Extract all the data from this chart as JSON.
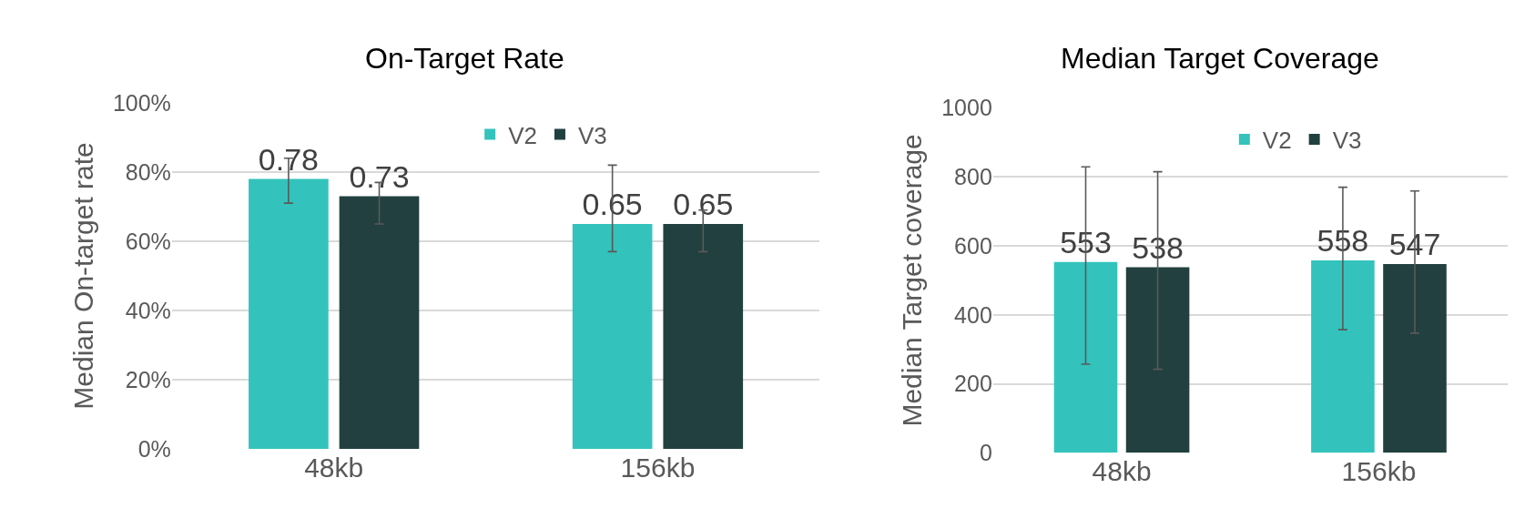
{
  "chart_data": [
    {
      "type": "bar",
      "title": "On-Target Rate",
      "ylabel": "Median On-target rate",
      "categories": [
        "48kb",
        "156kb"
      ],
      "series": [
        {
          "name": "V2",
          "color": "#33c3bc",
          "values": [
            0.78,
            0.65
          ],
          "errors": [
            [
              0.71,
              0.84
            ],
            [
              0.57,
              0.82
            ]
          ]
        },
        {
          "name": "V3",
          "color": "#224040",
          "values": [
            0.73,
            0.65
          ],
          "errors": [
            [
              0.65,
              0.77
            ],
            [
              0.57,
              0.69
            ]
          ]
        }
      ],
      "ylim": [
        0,
        1
      ],
      "yticks": [
        {
          "value": 0,
          "label": "0%"
        },
        {
          "value": 0.2,
          "label": "20%"
        },
        {
          "value": 0.4,
          "label": "40%"
        },
        {
          "value": 0.6,
          "label": "60%"
        },
        {
          "value": 0.8,
          "label": "80%"
        },
        {
          "value": 1,
          "label": "100%"
        }
      ],
      "grid": "y",
      "legend": "top",
      "data_labels": true
    },
    {
      "type": "bar",
      "title": "Median Target Coverage",
      "ylabel": "Median Target coverage",
      "categories": [
        "48kb",
        "156kb"
      ],
      "series": [
        {
          "name": "V2",
          "color": "#33c3bc",
          "values": [
            553,
            558
          ],
          "errors": [
            [
              257,
              829
            ],
            [
              357,
              770
            ]
          ]
        },
        {
          "name": "V3",
          "color": "#224040",
          "values": [
            538,
            547
          ],
          "errors": [
            [
              242,
              815
            ],
            [
              347,
              759
            ]
          ]
        }
      ],
      "ylim": [
        0,
        1000
      ],
      "yticks": [
        0,
        200,
        400,
        600,
        800,
        1000
      ],
      "grid": "y",
      "legend": "top",
      "data_labels": true
    }
  ]
}
